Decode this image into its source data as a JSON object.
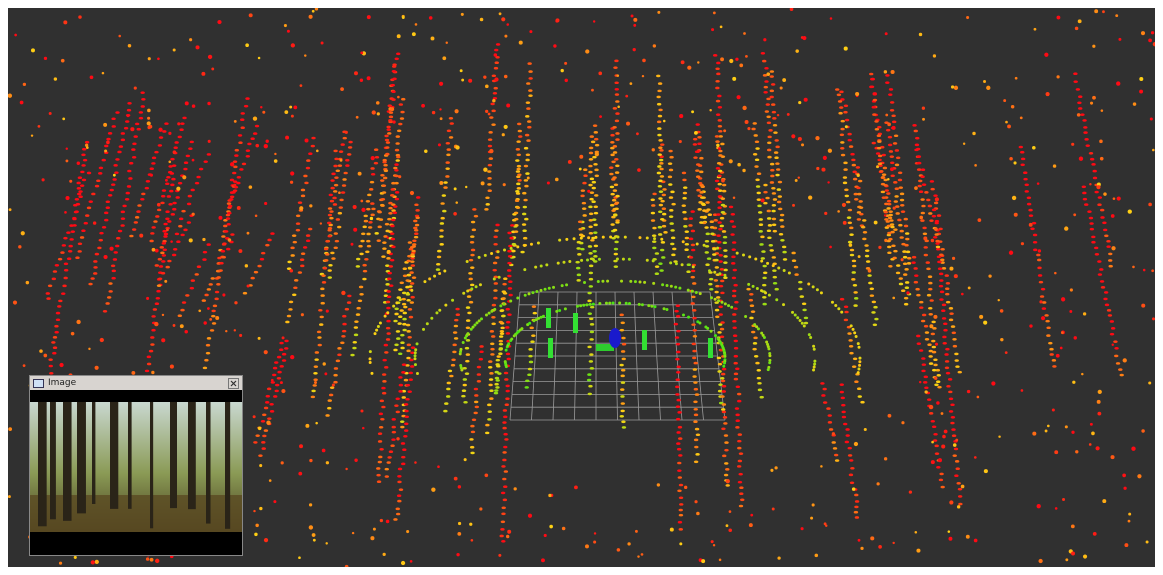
{
  "window": {
    "title": "Image"
  }
}
